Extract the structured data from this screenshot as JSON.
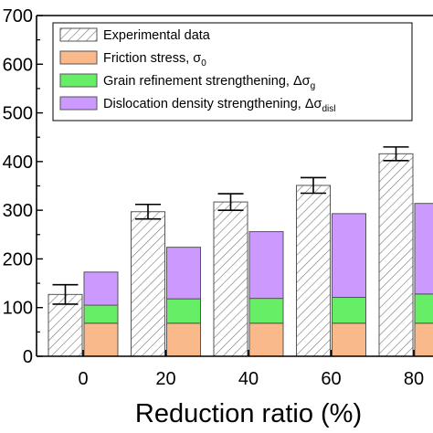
{
  "chart_data": {
    "type": "bar",
    "stacked_series_beside_experimental": true,
    "title": "",
    "xlabel": "Reduction ratio (%)",
    "ylabel": "",
    "categories": [
      "0",
      "20",
      "40",
      "60",
      "80"
    ],
    "ylim": [
      0,
      700
    ],
    "yticks": [
      "0",
      "100",
      "200",
      "300",
      "400",
      "500",
      "600",
      "700"
    ],
    "grid": false,
    "legend_position": "top-left",
    "series": [
      {
        "name": "Experimental data",
        "kind": "standalone-bar",
        "pattern": "diagonal-hatch",
        "color": "#777777",
        "values": [
          127,
          297,
          317,
          351,
          416
        ],
        "error": [
          20,
          15,
          17,
          16,
          14
        ]
      },
      {
        "name": "Friction stress, σ",
        "name_sub": "0",
        "kind": "stack",
        "color": "#f9b98a",
        "values": [
          68,
          68,
          68,
          68,
          68
        ]
      },
      {
        "name": "Grain refinement strengthening, Δσ",
        "name_sub": "g",
        "kind": "stack",
        "color": "#66ee66",
        "values": [
          37,
          50,
          51,
          53,
          60
        ]
      },
      {
        "name": "Dislocation density strengthening, Δσ",
        "name_sub": "disl",
        "kind": "stack",
        "color": "#cc99ff",
        "values": [
          68,
          106,
          137,
          172,
          186
        ]
      }
    ]
  }
}
